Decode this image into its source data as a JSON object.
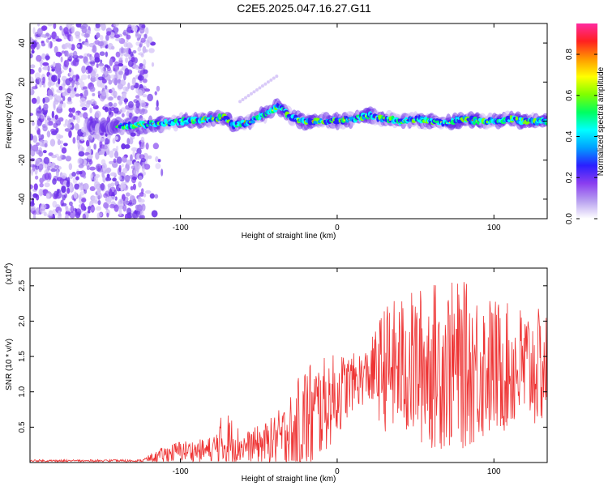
{
  "title": "C2E5.2025.047.16.27.G11",
  "chart_data": [
    {
      "type": "heatmap",
      "xlabel": "Height of straight line (km)",
      "ylabel": "Frequency (Hz)",
      "xlim": [
        -196,
        134
      ],
      "ylim": [
        -50,
        50
      ],
      "x_ticks": [
        -100,
        0,
        100
      ],
      "y_ticks": [
        -40,
        -20,
        0,
        20,
        40
      ],
      "colorbar": {
        "label": "Normalized spectral amplitude",
        "range": [
          0,
          0.95
        ],
        "ticks": [
          0.0,
          0.2,
          0.4,
          0.6,
          0.8
        ],
        "colors": [
          "#ffffff",
          "#b8a0f0",
          "#8a3df0",
          "#2a1fff",
          "#00a0ff",
          "#00ffff",
          "#00ff60",
          "#80ff00",
          "#ffff00",
          "#ff9900",
          "#ff2020",
          "#ff2aa0"
        ]
      },
      "noise_region_x": [
        -196,
        -122
      ],
      "ridge": {
        "x": [
          -145,
          -130,
          -110,
          -95,
          -80,
          -72,
          -66,
          -58,
          -50,
          -42,
          -37,
          -30,
          -20,
          -10,
          0,
          10,
          20,
          30,
          40,
          50,
          60,
          70,
          80,
          90,
          100,
          110,
          120,
          134
        ],
        "y": [
          -3,
          -2,
          -1,
          0,
          1,
          2,
          -2,
          -1,
          2,
          5,
          8,
          2,
          0,
          0,
          0,
          1,
          3,
          1,
          0,
          1,
          0,
          -1,
          1,
          0,
          0,
          1,
          0,
          0
        ]
      }
    },
    {
      "type": "line",
      "xlabel": "Height of straight line (km)",
      "ylabel": "SNR (10 * v/v)",
      "y_multiplier": "(x10",
      "y_multiplier_exp": "4",
      "y_multiplier_close": ")",
      "xlim": [
        -196,
        134
      ],
      "ylim": [
        0,
        2.75
      ],
      "x_ticks": [
        -100,
        0,
        100
      ],
      "y_ticks": [
        0.5,
        1.0,
        1.5,
        2.0,
        2.5
      ],
      "y_tick_labels": [
        "0.5",
        "1.0",
        "1.5",
        "2.0",
        "2.5"
      ],
      "color": "#ee3333",
      "envelope": {
        "x": [
          -196,
          -160,
          -125,
          -120,
          -110,
          -100,
          -90,
          -80,
          -76,
          -72,
          -60,
          -45,
          -35,
          -28,
          -20,
          -10,
          0,
          10,
          20,
          30,
          40,
          50,
          60,
          70,
          80,
          90,
          100,
          110,
          120,
          134
        ],
        "baseline": [
          0.02,
          0.02,
          0.02,
          0.05,
          0.1,
          0.15,
          0.15,
          0.15,
          0.2,
          0.25,
          0.2,
          0.25,
          0.3,
          0.4,
          0.5,
          0.7,
          0.9,
          1.1,
          1.2,
          1.25,
          1.25,
          1.25,
          1.25,
          1.25,
          1.25,
          1.25,
          1.25,
          1.25,
          1.25,
          1.25
        ],
        "amplitude": [
          0.02,
          0.02,
          0.02,
          0.05,
          0.12,
          0.15,
          0.15,
          0.2,
          0.3,
          0.5,
          0.2,
          0.3,
          0.45,
          0.6,
          0.9,
          0.7,
          0.6,
          0.4,
          0.4,
          0.9,
          1.0,
          1.1,
          1.2,
          1.2,
          1.2,
          1.1,
          1.0,
          0.9,
          0.9,
          0.8
        ]
      }
    }
  ]
}
